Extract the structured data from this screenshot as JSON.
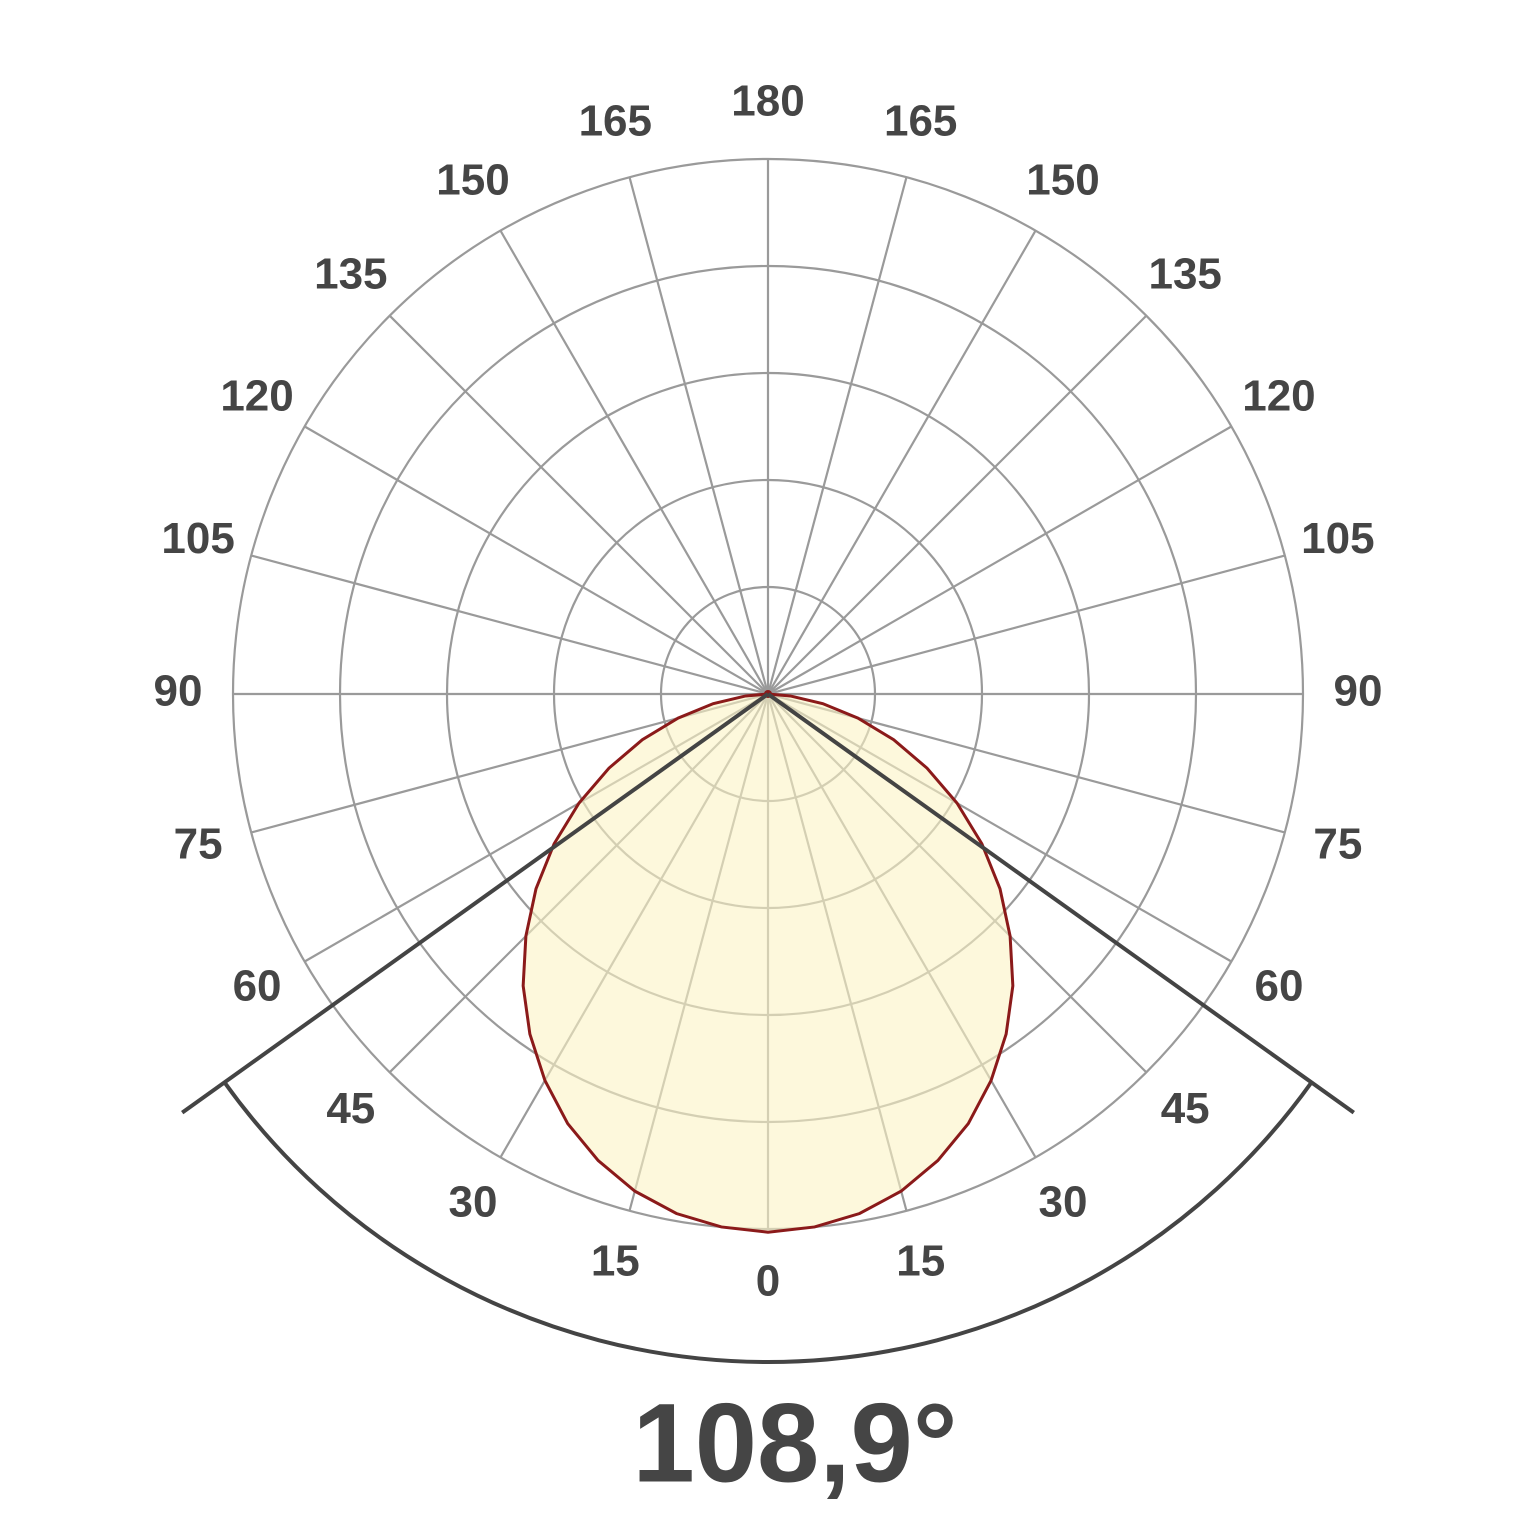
{
  "chart_data": {
    "type": "polar",
    "title": "108,9°",
    "beam_angle": 108.9,
    "rlim": [
      0,
      5
    ],
    "rticks": [
      1,
      2,
      3,
      4,
      5
    ],
    "thetaticks": [
      0,
      15,
      30,
      45,
      60,
      75,
      90,
      105,
      120,
      135,
      150,
      165,
      180
    ],
    "theta": [
      -90,
      -85,
      -80,
      -75,
      -70,
      -65,
      -60,
      -55,
      -50,
      -45,
      -40,
      -35,
      -30,
      -25,
      -20,
      -15,
      -10,
      -5,
      0,
      5,
      10,
      15,
      20,
      25,
      30,
      35,
      40,
      45,
      50,
      55,
      60,
      65,
      70,
      75,
      80,
      85,
      90
    ],
    "values": [
      0,
      0.21,
      0.52,
      0.87,
      1.25,
      1.64,
      2.04,
      2.44,
      2.83,
      3.2,
      3.56,
      3.88,
      4.17,
      4.43,
      4.64,
      4.81,
      4.93,
      5.0,
      5.03,
      5.0,
      4.93,
      4.81,
      4.64,
      4.43,
      4.17,
      3.88,
      3.56,
      3.2,
      2.83,
      2.44,
      2.04,
      1.64,
      1.25,
      0.87,
      0.52,
      0.21,
      0
    ],
    "color": "#8b1a1a",
    "fill": "#fbf3c4",
    "grid_color": "#9a9a9a",
    "beam_color": "#444444"
  }
}
